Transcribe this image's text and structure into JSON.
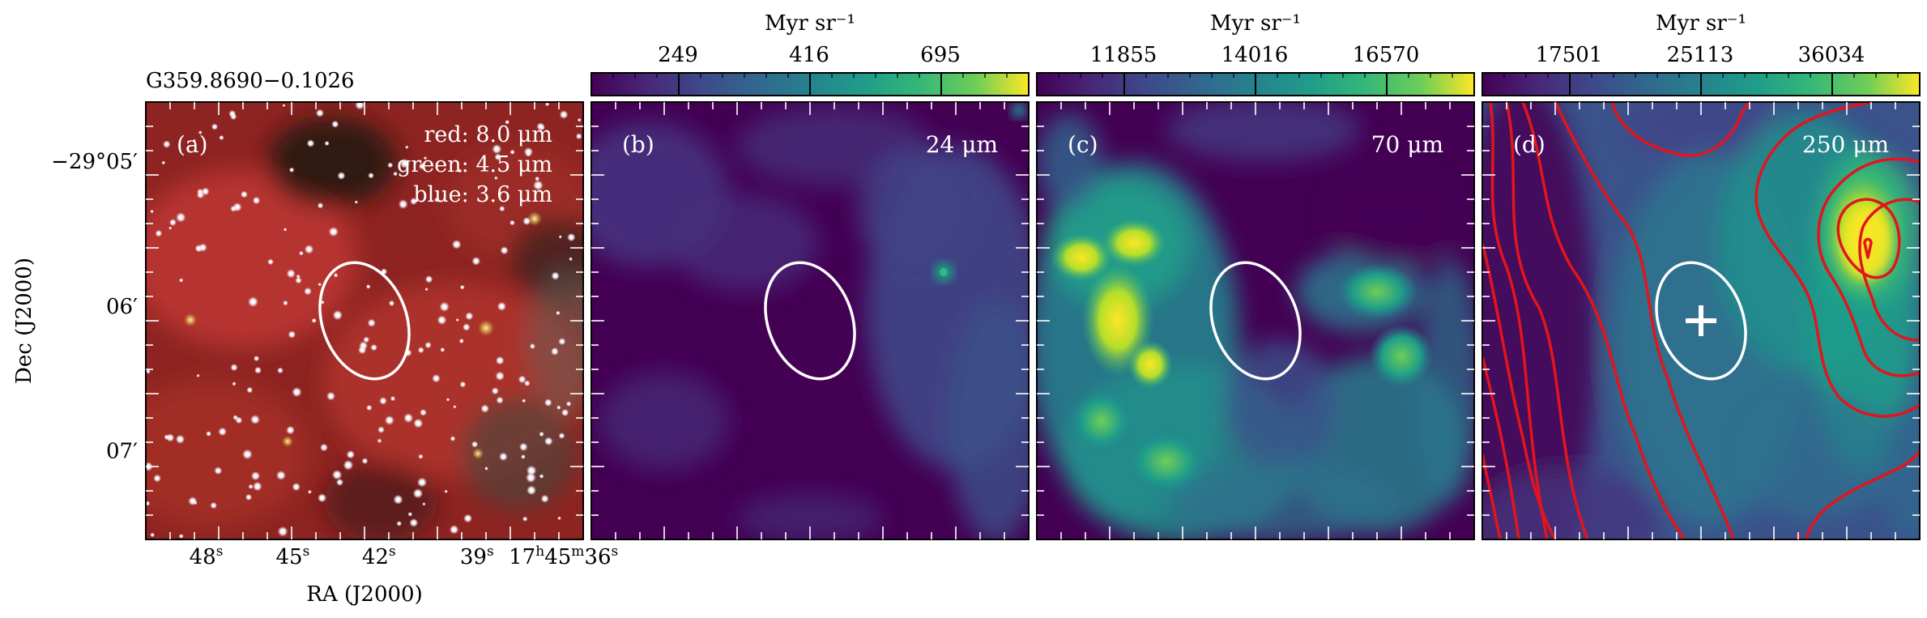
{
  "source_name": "G359.8690−0.1026",
  "y_axis_label": "Dec (J2000)",
  "x_axis_label": "RA (J2000)",
  "dec_ticks": [
    {
      "text": "−29°05′",
      "frac": 0.135
    },
    {
      "text": "06′",
      "frac": 0.467
    },
    {
      "text": "07′",
      "frac": 0.797
    }
  ],
  "ra_ticks": [
    {
      "base": "48",
      "sup": "s",
      "frac": 0.138
    },
    {
      "base": "45",
      "sup": "s",
      "frac": 0.336
    },
    {
      "base": "42",
      "sup": "s",
      "frac": 0.533
    },
    {
      "base": "39",
      "sup": "s",
      "frac": 0.757
    },
    {
      "base": "17",
      "sup": "h",
      "base2": "45",
      "sup2": "m",
      "base3": "36",
      "sup3": "s",
      "frac": 0.955
    }
  ],
  "panels": [
    {
      "id": "a",
      "tag": "(a)",
      "legend_lines": [
        "red: 8.0 μm",
        "green: 4.5 μm",
        "blue: 3.6 μm"
      ],
      "colorbar": null
    },
    {
      "id": "b",
      "tag": "(b)",
      "wavelength_label": "24 μm",
      "colorbar": {
        "unit": "Myr sr⁻¹",
        "ticks": [
          "249",
          "416",
          "695"
        ]
      }
    },
    {
      "id": "c",
      "tag": "(c)",
      "wavelength_label": "70 μm",
      "colorbar": {
        "unit": "Myr sr⁻¹",
        "ticks": [
          "11855",
          "14016",
          "16570"
        ]
      }
    },
    {
      "id": "d",
      "tag": "(d)",
      "wavelength_label": "250 μm",
      "colorbar": {
        "unit": "Myr sr⁻¹",
        "ticks": [
          "17501",
          "25113",
          "36034"
        ]
      }
    }
  ],
  "colors": {
    "viridis_low": "#440154",
    "viridis_mid": "#21918c",
    "viridis_high": "#fde725",
    "ellipse": "#ffffff",
    "contour": "#e3141b",
    "marker": "#ffffff"
  }
}
